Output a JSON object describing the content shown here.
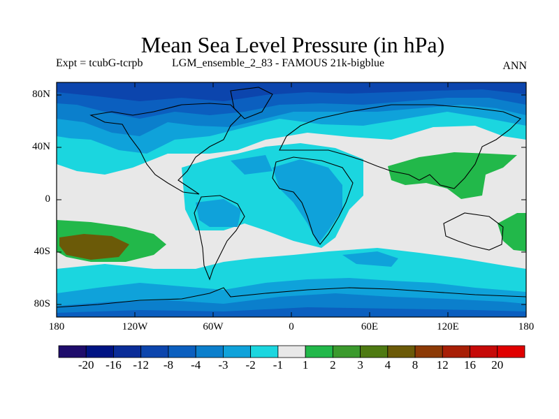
{
  "title": "Mean Sea Level Pressure (in hPa)",
  "subtitle_left": "Expt = tcubG-tcrpb",
  "subtitle_mid": "LGM_ensemble_2_83 - FAMOUS 21k-bigblue",
  "subtitle_right": "ANN",
  "map": {
    "lat_labels": [
      "80N",
      "40N",
      "0",
      "40S",
      "80S"
    ],
    "lon_labels": [
      "180",
      "120W",
      "60W",
      "0",
      "60E",
      "120E",
      "180"
    ]
  },
  "colorbar": {
    "labels": [
      "-20",
      "-16",
      "-12",
      "-8",
      "-4",
      "-3",
      "-2",
      "-1",
      "1",
      "2",
      "3",
      "4",
      "8",
      "12",
      "16",
      "20"
    ],
    "colors": [
      "#1e0c6b",
      "#001383",
      "#0a2c98",
      "#0c45ad",
      "#0b5fbf",
      "#0b7fcc",
      "#0fa2da",
      "#1bd6df",
      "#e8e8e8",
      "#22b84a",
      "#3b9a2d",
      "#4e7a12",
      "#6b5a08",
      "#8c3a06",
      "#a81f06",
      "#c60a08",
      "#e00000"
    ]
  },
  "chart_data": {
    "type": "heatmap",
    "title": "Mean Sea Level Pressure (in hPa)",
    "subtitle": "Expt = tcubG-tcrpb   LGM_ensemble_2_83 - FAMOUS 21k-bigblue",
    "season": "ANN",
    "x_range": [
      -180,
      180
    ],
    "y_range": [
      -90,
      90
    ],
    "x_ticks": [
      "180",
      "120W",
      "60W",
      "0",
      "60E",
      "120E",
      "180"
    ],
    "y_ticks": [
      "80N",
      "40N",
      "0",
      "40S",
      "80S"
    ],
    "levels": [
      -20,
      -16,
      -12,
      -8,
      -4,
      -3,
      -2,
      -1,
      1,
      2,
      3,
      4,
      8,
      12,
      16,
      20
    ],
    "units": "hPa"
  }
}
